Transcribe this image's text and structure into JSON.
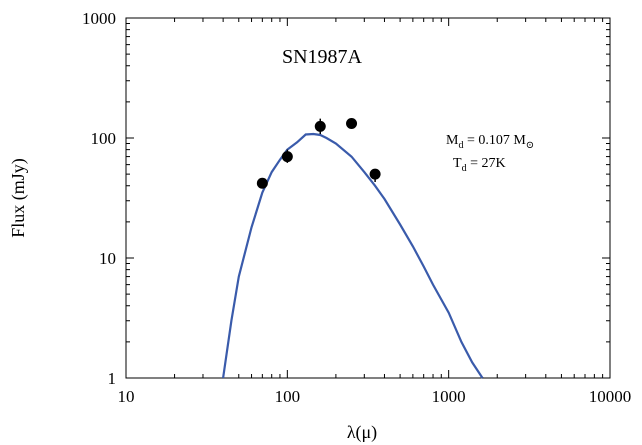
{
  "chart_data": {
    "type": "scatter",
    "title": "SN1987A",
    "xlabel": "λ(μ)",
    "ylabel": "Flux (mJy)",
    "xscale": "log",
    "yscale": "log",
    "xlim": [
      10,
      10000
    ],
    "ylim": [
      1,
      1000
    ],
    "x_tick_labels": [
      "10",
      "100",
      "1000",
      "10000"
    ],
    "y_tick_labels": [
      "1",
      "10",
      "100",
      "1000"
    ],
    "grid": false,
    "annotations": {
      "mass_line": {
        "prefix": "M",
        "sub1": "d",
        "middle": " = 0.107 M",
        "sub2": "⊙"
      },
      "temp_line": {
        "prefix": "T",
        "sub1": "d",
        "middle": " = 27K"
      }
    },
    "series": [
      {
        "type": "scatter",
        "color": "#000000",
        "points": [
          {
            "x": 70,
            "y": 42,
            "yerr_low": 39,
            "yerr_high": 45
          },
          {
            "x": 100,
            "y": 70,
            "yerr_low": 62,
            "yerr_high": 80
          },
          {
            "x": 160,
            "y": 125,
            "yerr_low": 108,
            "yerr_high": 145
          },
          {
            "x": 250,
            "y": 132,
            "yerr_low": 128,
            "yerr_high": 136
          },
          {
            "x": 350,
            "y": 50,
            "yerr_low": 43,
            "yerr_high": 55
          }
        ]
      },
      {
        "type": "line",
        "color": "#3a5bab",
        "points": [
          [
            40,
            1
          ],
          [
            45,
            3
          ],
          [
            50,
            7
          ],
          [
            60,
            18
          ],
          [
            70,
            35
          ],
          [
            80,
            52
          ],
          [
            90,
            66
          ],
          [
            100,
            80
          ],
          [
            115,
            92
          ],
          [
            130,
            107
          ],
          [
            145,
            108
          ],
          [
            160,
            106
          ],
          [
            175,
            100
          ],
          [
            200,
            90
          ],
          [
            250,
            70
          ],
          [
            300,
            52
          ],
          [
            350,
            40
          ],
          [
            400,
            31
          ],
          [
            500,
            19
          ],
          [
            600,
            12.5
          ],
          [
            700,
            8.5
          ],
          [
            800,
            6
          ],
          [
            1000,
            3.5
          ],
          [
            1200,
            2
          ],
          [
            1400,
            1.35
          ],
          [
            1620,
            1
          ]
        ]
      }
    ]
  }
}
